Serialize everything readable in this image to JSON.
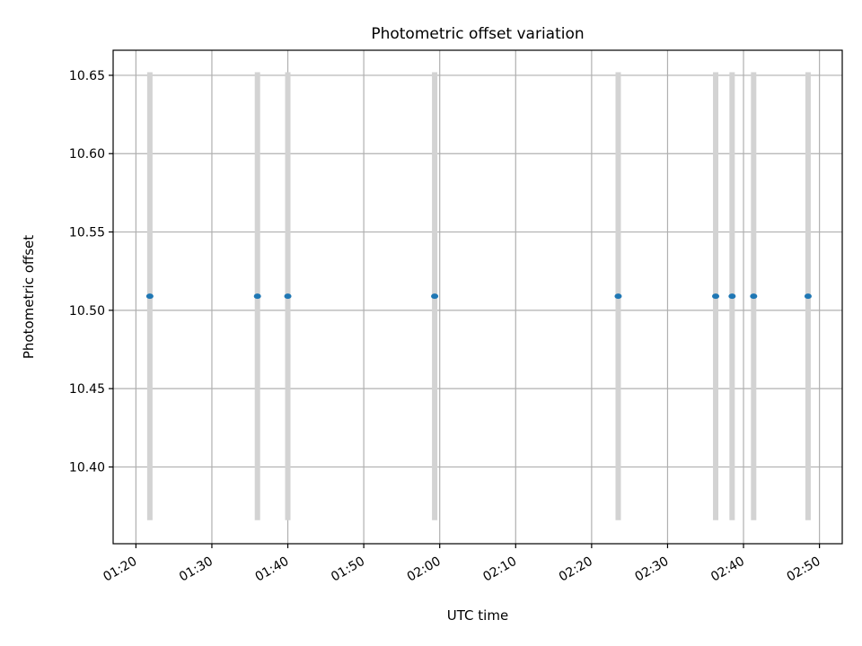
{
  "chart_data": {
    "type": "scatter",
    "title": "Photometric offset variation",
    "xlabel": "UTC time",
    "ylabel": "Photometric offset",
    "x_ticks": [
      "01:20",
      "01:30",
      "01:40",
      "01:50",
      "02:00",
      "02:10",
      "02:20",
      "02:30",
      "02:40",
      "02:50"
    ],
    "y_ticks": [
      "10.40",
      "10.45",
      "10.50",
      "10.55",
      "10.60",
      "10.65"
    ],
    "xlim": [
      "01:17",
      "02:53"
    ],
    "ylim": [
      10.351,
      10.666
    ],
    "grid": true,
    "points": [
      {
        "x": "01:21:50",
        "y": 10.509,
        "err_low": 10.366,
        "err_high": 10.652
      },
      {
        "x": "01:36:00",
        "y": 10.509,
        "err_low": 10.366,
        "err_high": 10.652
      },
      {
        "x": "01:40:00",
        "y": 10.509,
        "err_low": 10.366,
        "err_high": 10.652
      },
      {
        "x": "01:59:20",
        "y": 10.509,
        "err_low": 10.366,
        "err_high": 10.652
      },
      {
        "x": "02:23:30",
        "y": 10.509,
        "err_low": 10.366,
        "err_high": 10.652
      },
      {
        "x": "02:36:20",
        "y": 10.509,
        "err_low": 10.366,
        "err_high": 10.652
      },
      {
        "x": "02:38:30",
        "y": 10.509,
        "err_low": 10.366,
        "err_high": 10.652
      },
      {
        "x": "02:41:20",
        "y": 10.509,
        "err_low": 10.366,
        "err_high": 10.652
      },
      {
        "x": "02:48:30",
        "y": 10.509,
        "err_low": 10.366,
        "err_high": 10.652
      }
    ],
    "colors": {
      "marker": "#1f77b4",
      "errorbar": "#d3d3d3",
      "grid": "#b0b0b0"
    }
  }
}
